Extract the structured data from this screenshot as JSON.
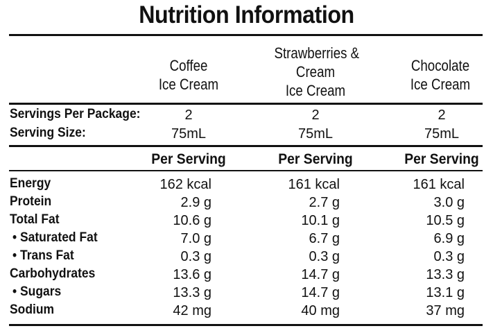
{
  "title": "Nutrition Information",
  "products": [
    {
      "name_lines": [
        "Coffee",
        "Ice Cream"
      ]
    },
    {
      "name_lines": [
        "Strawberries &",
        "Cream",
        "Ice Cream"
      ]
    },
    {
      "name_lines": [
        "Chocolate",
        "Ice Cream"
      ]
    }
  ],
  "servings": {
    "per_package_label": "Servings Per Package:",
    "size_label": "Serving Size:",
    "per_package": [
      "2",
      "2",
      "2"
    ],
    "size": [
      "75mL",
      "75mL",
      "75mL"
    ]
  },
  "per_serving_label": "Per Serving",
  "nutrients": [
    {
      "label": "Energy",
      "values": [
        "162 kcal",
        "161 kcal",
        "161 kcal"
      ]
    },
    {
      "label": "Protein",
      "values": [
        "2.9 g",
        "2.7 g",
        "3.0 g"
      ]
    },
    {
      "label": "Total Fat",
      "values": [
        "10.6 g",
        "10.1 g",
        "10.5 g"
      ]
    },
    {
      "label": "• Saturated Fat",
      "values": [
        "7.0 g",
        "6.7 g",
        "6.9 g"
      ]
    },
    {
      "label": "• Trans Fat",
      "values": [
        "0.3 g",
        "0.3 g",
        "0.3 g"
      ]
    },
    {
      "label": "Carbohydrates",
      "values": [
        "13.6 g",
        "14.7 g",
        "13.3 g"
      ]
    },
    {
      "label": "• Sugars",
      "values": [
        "13.3 g",
        "14.7 g",
        "13.1 g"
      ]
    },
    {
      "label": "Sodium",
      "values": [
        "42 mg",
        "40 mg",
        "37 mg"
      ]
    }
  ]
}
